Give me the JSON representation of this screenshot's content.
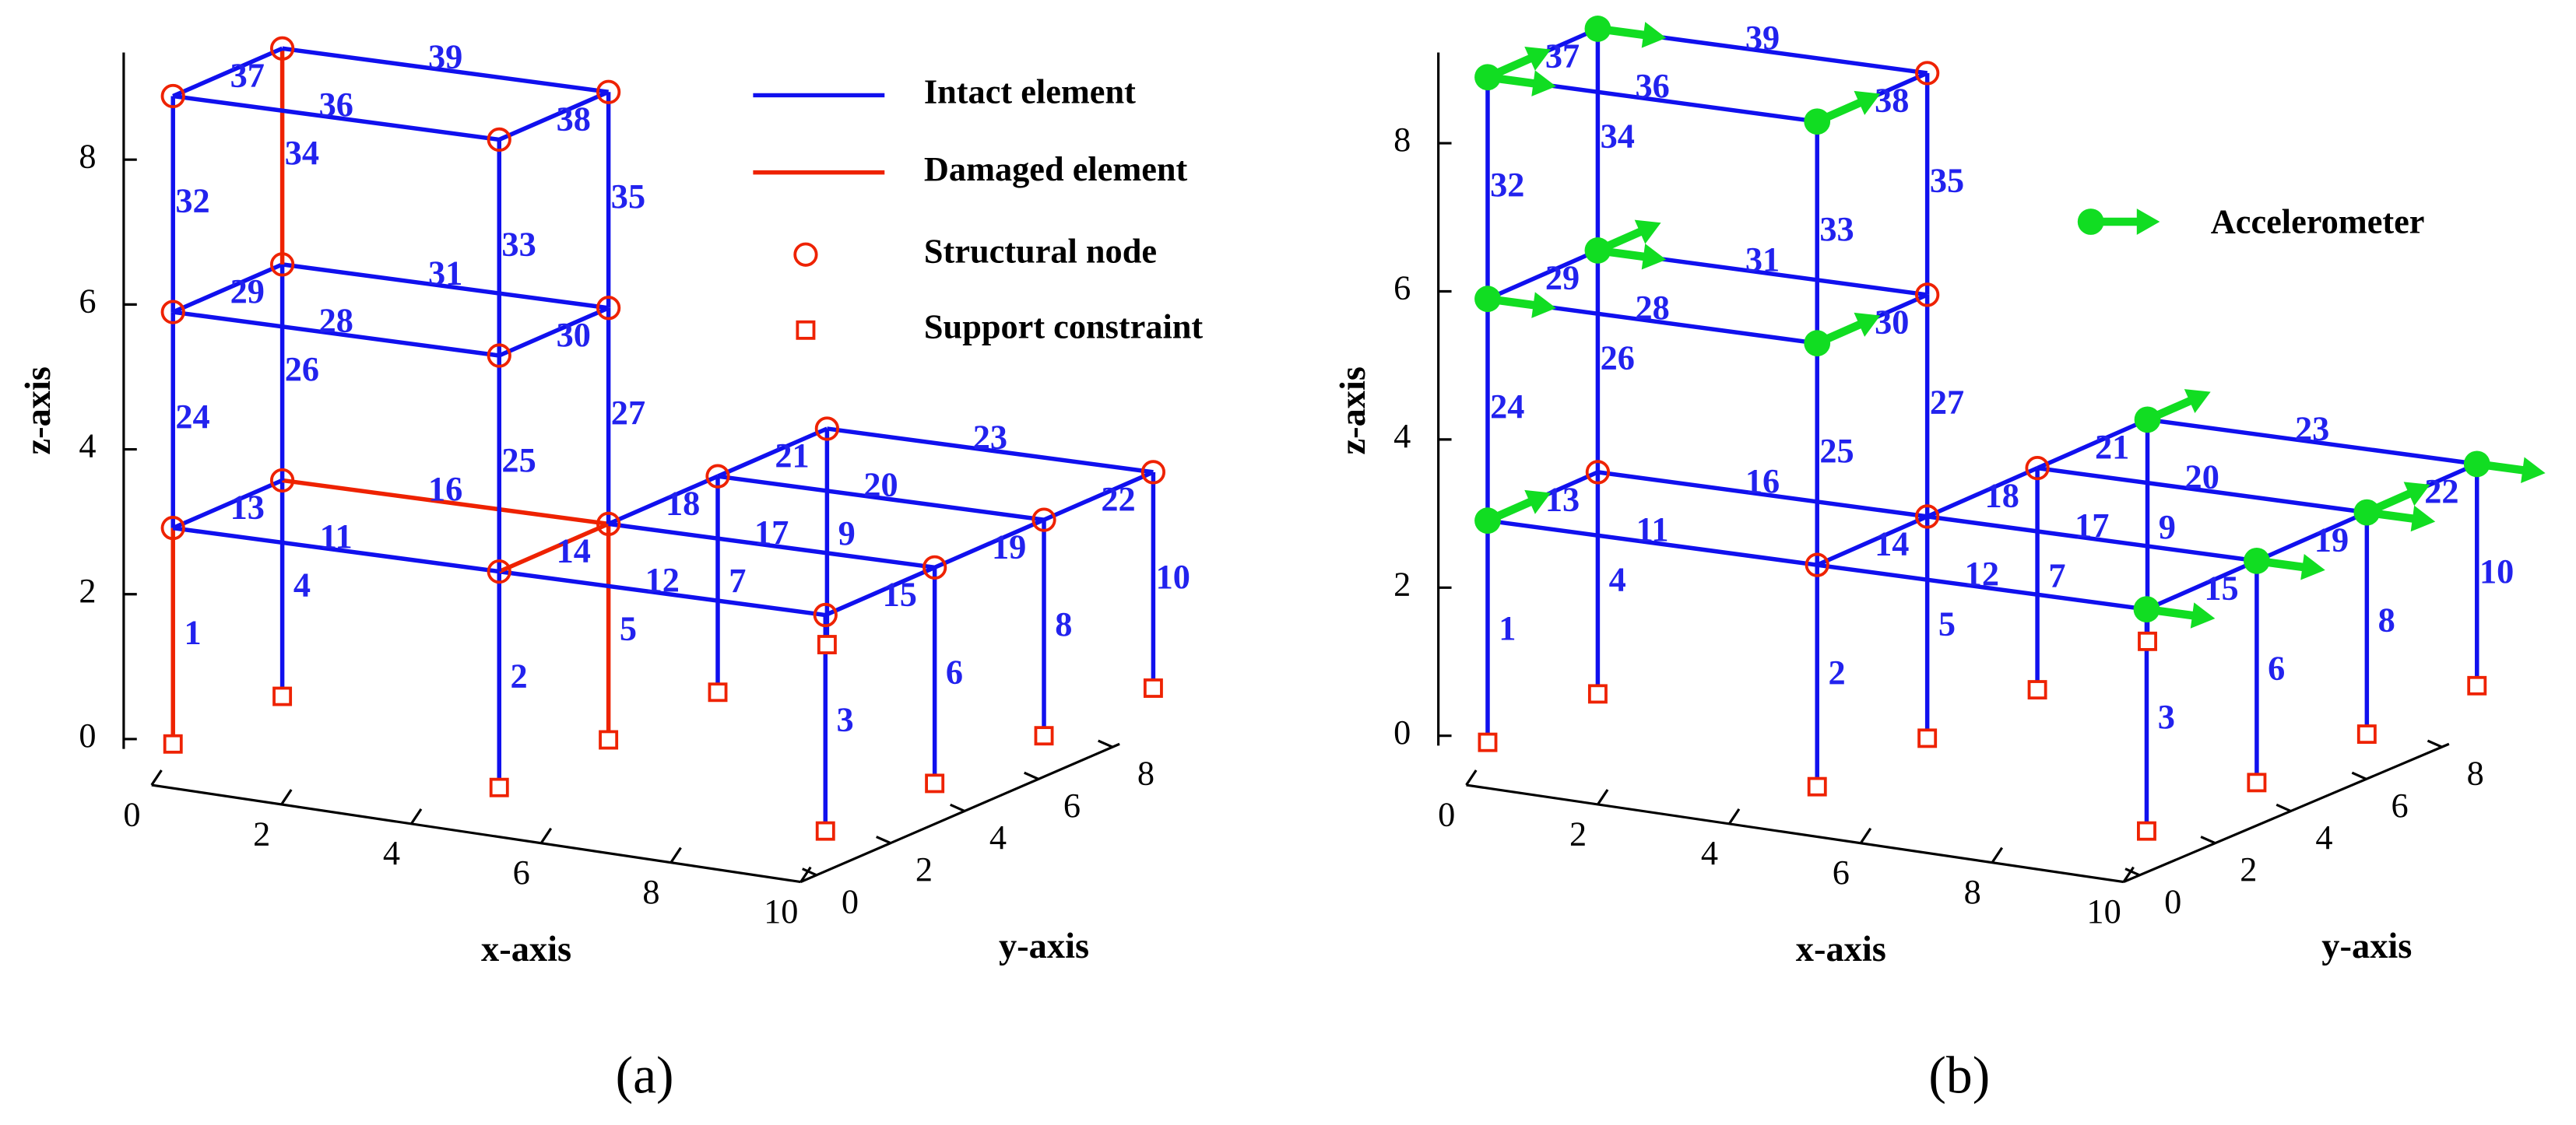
{
  "panels": [
    {
      "label": "(a)",
      "elements": [
        "1",
        "2",
        "3",
        "4",
        "5",
        "6",
        "7",
        "8",
        "9",
        "10",
        "11",
        "12",
        "13",
        "14",
        "15",
        "16",
        "17",
        "18",
        "19",
        "20",
        "21",
        "22",
        "23",
        "24",
        "25",
        "26",
        "27",
        "28",
        "29",
        "30",
        "31",
        "32",
        "33",
        "34",
        "35",
        "36",
        "37",
        "38",
        "39"
      ],
      "damaged_elements": [
        "1",
        "5",
        "14",
        "16",
        "34"
      ],
      "x_axis": {
        "title": "x-axis",
        "ticks": [
          0,
          2,
          4,
          6,
          8,
          10
        ]
      },
      "y_axis": {
        "title": "y-axis",
        "ticks": [
          0,
          2,
          4,
          6,
          8
        ]
      },
      "z_axis": {
        "title": "z-axis",
        "ticks": [
          0,
          2,
          4,
          6,
          8
        ]
      },
      "legend": [
        "Intact element",
        "Damaged element",
        "Structural node",
        "Support constraint"
      ]
    },
    {
      "label": "(b)",
      "elements": [
        "1",
        "2",
        "3",
        "4",
        "5",
        "6",
        "7",
        "8",
        "9",
        "10",
        "11",
        "12",
        "13",
        "14",
        "15",
        "16",
        "17",
        "18",
        "19",
        "20",
        "21",
        "22",
        "23",
        "24",
        "25",
        "26",
        "27",
        "28",
        "29",
        "30",
        "31",
        "32",
        "33",
        "34",
        "35",
        "36",
        "37",
        "38",
        "39"
      ],
      "damaged_elements": [],
      "x_axis": {
        "title": "x-axis",
        "ticks": [
          0,
          2,
          4,
          6,
          8,
          10
        ]
      },
      "y_axis": {
        "title": "y-axis",
        "ticks": [
          0,
          2,
          4,
          6,
          8
        ]
      },
      "z_axis": {
        "title": "z-axis",
        "ticks": [
          0,
          2,
          4,
          6,
          8
        ]
      },
      "legend": [
        "Accelerometer"
      ]
    }
  ]
}
